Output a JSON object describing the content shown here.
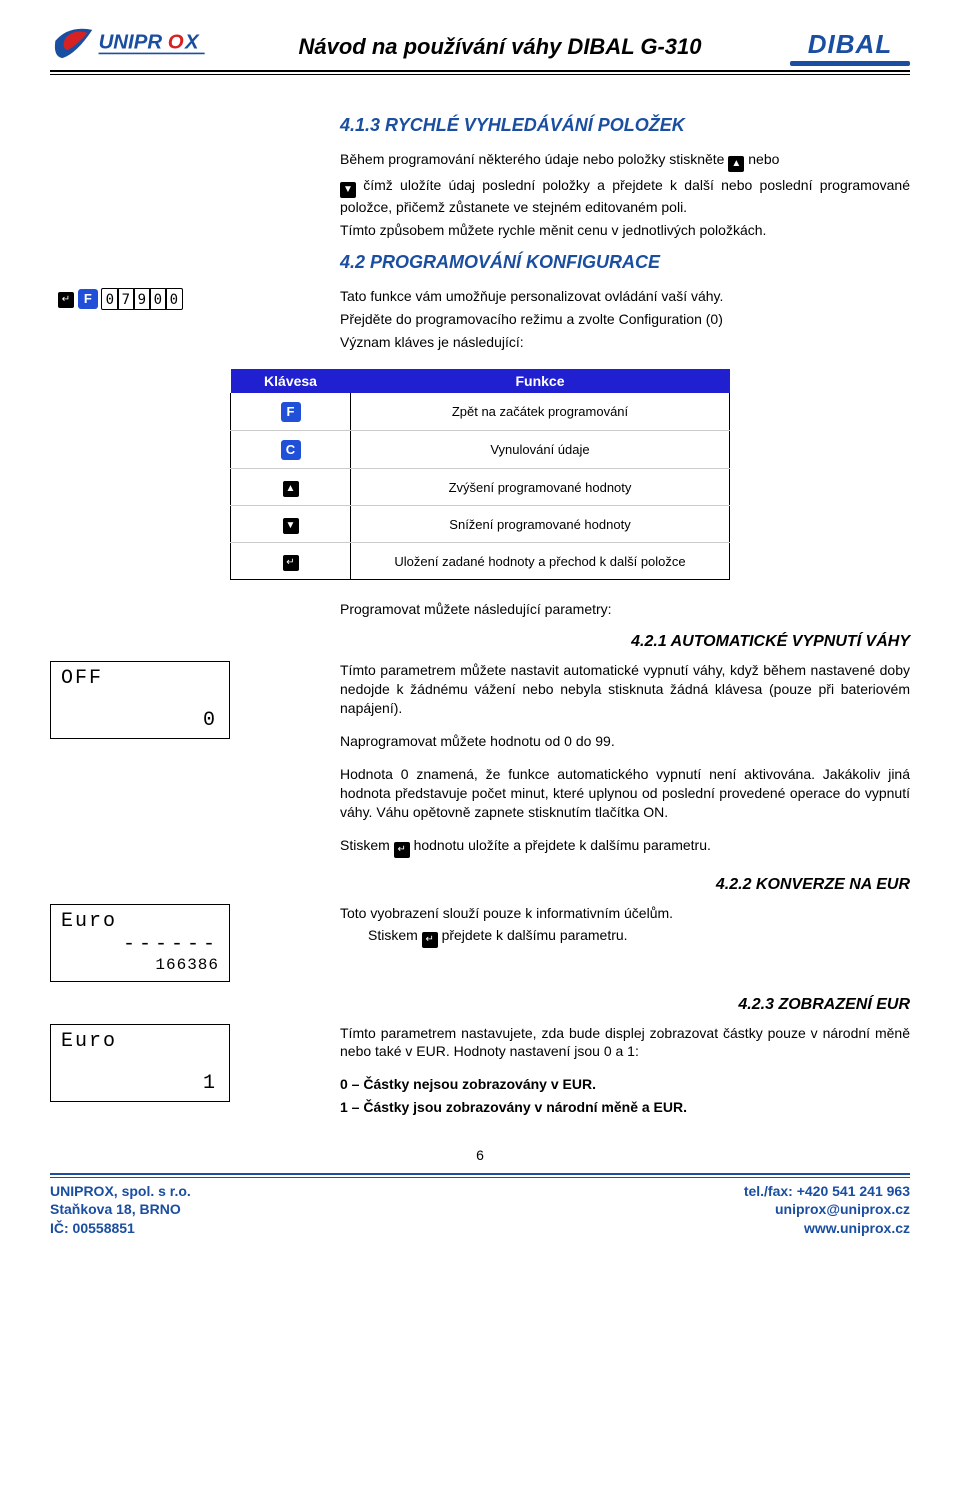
{
  "header": {
    "title": "Návod na používání váhy DIBAL G-310",
    "logo_left": "UNIPROX",
    "logo_right": "DIBAL"
  },
  "sec_413": {
    "heading": "4.1.3  RYCHLÉ VYHLEDÁVÁNÍ POLOŽEK",
    "p1a": "Během programování některého údaje nebo položky stiskněte ",
    "p1b": " nebo",
    "p2a": " čímž uložíte údaj poslední položky a přejdete k další nebo poslední programované položce, přičemž zůstanete ve stejném editovaném poli.",
    "p3": "Tímto způsobem můžete rychle měnit cenu v jednotlivých položkách."
  },
  "sec_42": {
    "heading": "4.2 PROGRAMOVÁNÍ KONFIGURACE",
    "keyseq": [
      "↵",
      "F",
      "0",
      "7",
      "9",
      "0",
      "0"
    ],
    "intro1": "Tato funkce vám umožňuje personalizovat ovládání vaší váhy.",
    "intro2": "Přejděte do programovacího režimu a zvolte Configuration (0)",
    "intro3": "Význam kláves je následující:"
  },
  "table": {
    "head_key": "Klávesa",
    "head_func": "Funkce",
    "rows": [
      {
        "key_type": "blue",
        "key_label": "F",
        "func": "Zpět na začátek programování"
      },
      {
        "key_type": "blue",
        "key_label": "C",
        "func": "Vynulování údaje"
      },
      {
        "key_type": "black",
        "key_label": "▲",
        "func": "Zvýšení programované hodnoty"
      },
      {
        "key_type": "black",
        "key_label": "▼",
        "func": "Snížení programované hodnoty"
      },
      {
        "key_type": "black",
        "key_label": "↵",
        "func": "Uložení zadané hodnoty a přechod k další položce"
      }
    ],
    "outro": "Programovat můžete následující parametry:"
  },
  "sec_421": {
    "heading": "4.2.1   AUTOMATICKÉ VYPNUTÍ VÁHY",
    "lcd": {
      "l1": "OFF",
      "l2": "0"
    },
    "p1": "Tímto parametrem můžete nastavit automatické vypnutí váhy, když během nastavené doby nedojde k žádnému vážení nebo nebyla stisknuta žádná klávesa (pouze při bateriovém napájení).",
    "p2": "Naprogramovat můžete hodnotu od 0 do 99.",
    "p3": "Hodnota 0 znamená, že funkce automatického vypnutí není aktivována. Jakákoliv jiná hodnota představuje počet minut, které uplynou od poslední provedené operace do vypnutí váhy. Váhu opětovně zapnete stisknutím tlačítka ON.",
    "p4a": "Stiskem ",
    "p4b": " hodnotu uložíte a přejdete k dalšímu parametru."
  },
  "sec_422": {
    "heading": "4.2.2  KONVERZE NA EUR",
    "lcd": {
      "l1": "Euro",
      "l2": "------",
      "l3": "166386"
    },
    "p1": "Toto vyobrazení slouží pouze k informativním účelům.",
    "p2a": "Stiskem ",
    "p2b": " přejdete k dalšímu parametru."
  },
  "sec_423": {
    "heading": "4.2.3  ZOBRAZENÍ EUR",
    "lcd": {
      "l1": "Euro",
      "l2": "1"
    },
    "p1": "Tímto parametrem nastavujete, zda bude displej zobrazovat částky pouze v národní měně nebo také v EUR. Hodnoty nastavení jsou 0 a 1:",
    "li0": "0 – Částky nejsou zobrazovány v EUR.",
    "li1": "1 – Částky jsou zobrazovány v národní měně a EUR."
  },
  "footer": {
    "page_num": "6",
    "left1": "UNIPROX, spol. s r.o.",
    "left2": "Staňkova 18, BRNO",
    "left3": "IČ: 00558851",
    "right1": "tel./fax: +420 541 241 963",
    "right2": "uniprox@uniprox.cz",
    "right3": "www.uniprox.cz"
  }
}
